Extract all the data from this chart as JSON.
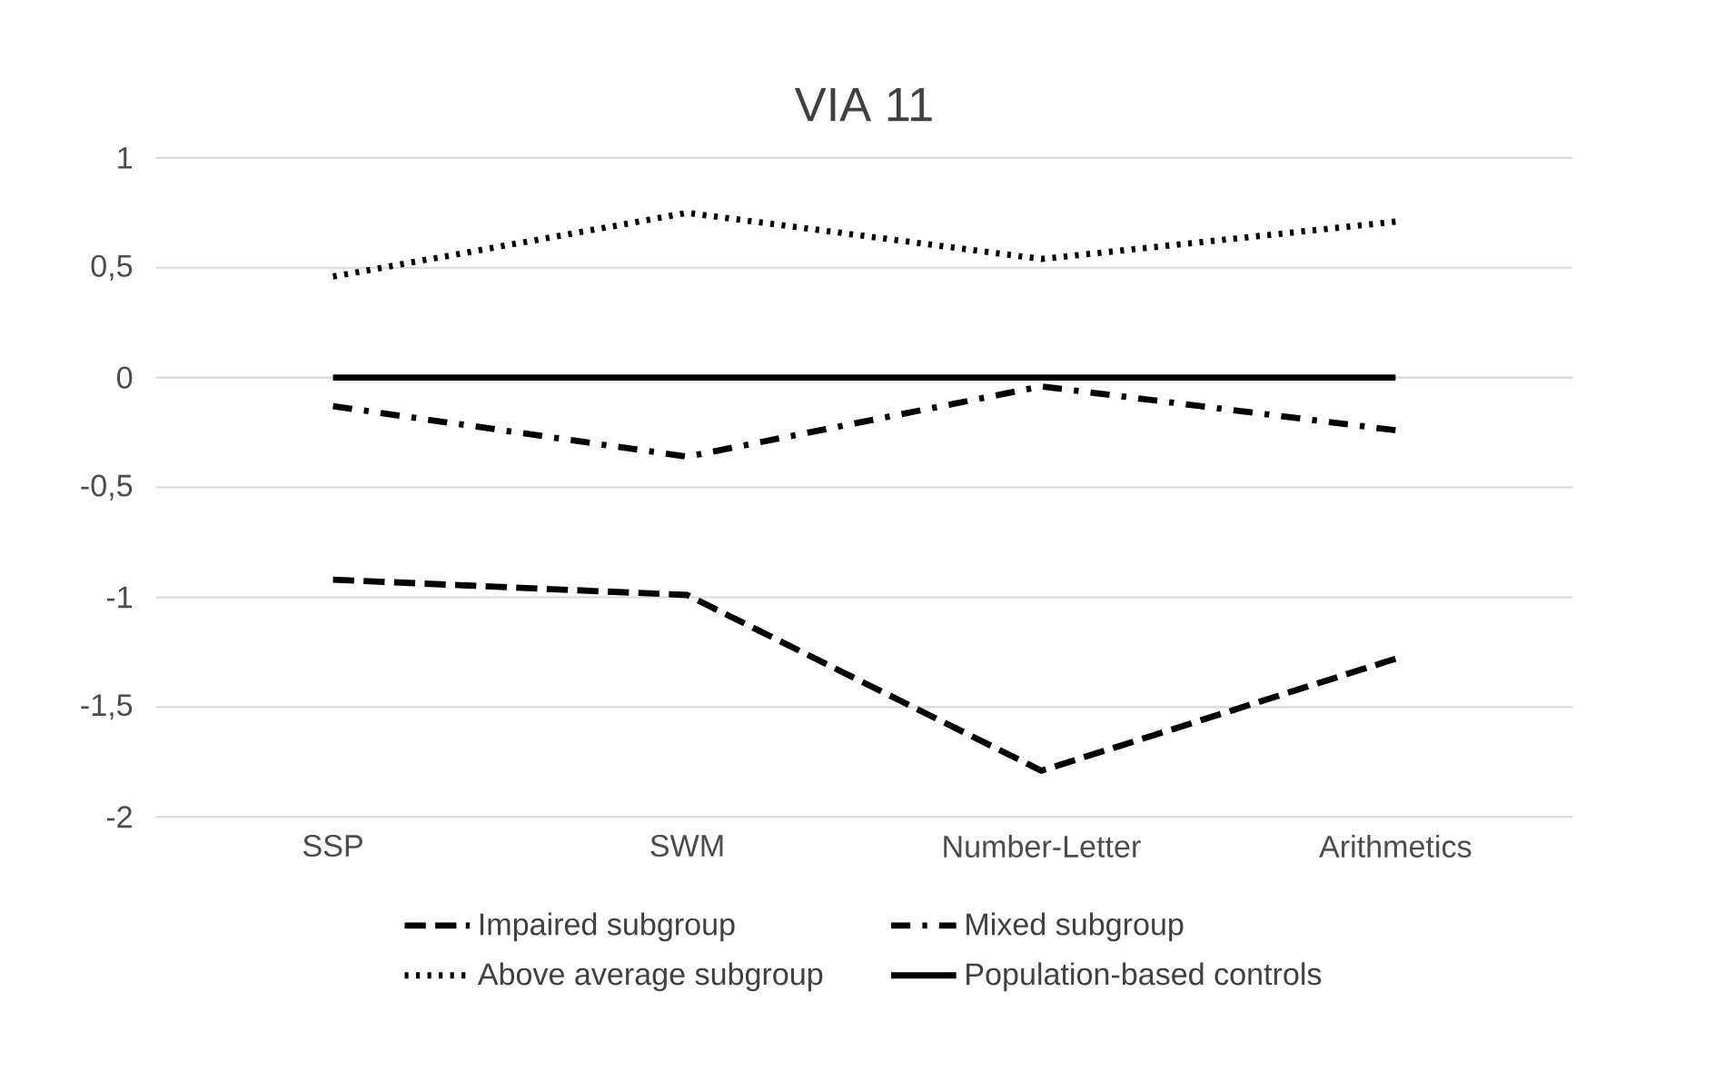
{
  "chart_data": {
    "type": "line",
    "title": "VIA 11",
    "categories": [
      "SSP",
      "SWM",
      "Number-Letter",
      "Arithmetics"
    ],
    "series": [
      {
        "name": "Impaired subgroup",
        "color": "#000000",
        "line_style": "dashed",
        "values": [
          -0.92,
          -0.99,
          -1.79,
          -1.28
        ]
      },
      {
        "name": "Mixed subgroup",
        "color": "#000000",
        "line_style": "dashdot",
        "values": [
          -0.13,
          -0.36,
          -0.04,
          -0.24
        ]
      },
      {
        "name": "Above average subgroup",
        "color": "#000000",
        "line_style": "dotted",
        "values": [
          0.46,
          0.75,
          0.54,
          0.71
        ]
      },
      {
        "name": "Population-based controls",
        "color": "#000000",
        "line_style": "solid",
        "values": [
          0,
          0,
          0,
          0
        ]
      }
    ],
    "ylim": [
      -2,
      1
    ],
    "yticks": [
      -2,
      {
        "value": -1.5,
        "label": "-1,5"
      },
      -1,
      {
        "value": -0.5,
        "label": "-0,5"
      },
      0,
      {
        "value": 0.5,
        "label": "0,5"
      },
      1
    ],
    "grid": "y",
    "legend": "bottom",
    "marker": "none"
  }
}
